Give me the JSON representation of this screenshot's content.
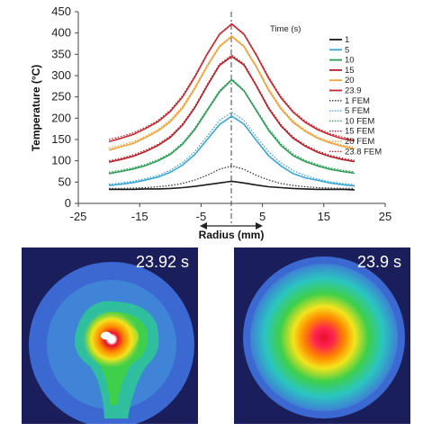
{
  "chart_data": {
    "type": "line",
    "xlabel": "Radius (mm)",
    "ylabel": "Temperature (°C)",
    "xlim": [
      -25,
      25
    ],
    "ylim": [
      0,
      450
    ],
    "xticks": [
      -25,
      -15,
      -5,
      5,
      15,
      25
    ],
    "yticks": [
      0,
      50,
      100,
      150,
      200,
      250,
      300,
      350,
      400,
      450
    ],
    "grid": false,
    "legend_title": "Time (s)",
    "legend_position": "top-right",
    "x": [
      -20,
      -18,
      -16,
      -14,
      -12,
      -10,
      -8,
      -6,
      -4,
      -2,
      0,
      2,
      4,
      6,
      8,
      10,
      12,
      14,
      16,
      18,
      20
    ],
    "series": [
      {
        "name": "1",
        "style": "solid",
        "color": "#1a1a1a",
        "values": [
          33,
          33,
          33,
          34,
          34,
          35,
          37,
          40,
          44,
          48,
          52,
          48,
          43,
          39,
          37,
          35,
          34,
          33,
          33,
          33,
          32
        ]
      },
      {
        "name": "5",
        "style": "solid",
        "color": "#3aa6d6",
        "values": [
          42,
          45,
          49,
          55,
          62,
          73,
          90,
          115,
          150,
          185,
          205,
          186,
          148,
          112,
          88,
          70,
          60,
          54,
          48,
          44,
          41
        ]
      },
      {
        "name": "10",
        "style": "solid",
        "color": "#2e9e57",
        "values": [
          70,
          75,
          81,
          89,
          100,
          115,
          139,
          174,
          218,
          262,
          290,
          264,
          218,
          172,
          136,
          112,
          98,
          88,
          80,
          75,
          71
        ]
      },
      {
        "name": "15",
        "style": "solid",
        "color": "#b8202a",
        "values": [
          97,
          103,
          111,
          122,
          136,
          155,
          184,
          225,
          276,
          324,
          345,
          325,
          276,
          223,
          182,
          153,
          134,
          120,
          110,
          103,
          98
        ]
      },
      {
        "name": "20",
        "style": "solid",
        "color": "#f2a23a",
        "values": [
          125,
          133,
          141,
          155,
          170,
          192,
          224,
          270,
          322,
          368,
          392,
          368,
          320,
          266,
          222,
          190,
          169,
          153,
          142,
          134,
          128
        ]
      },
      {
        "name": "23.9",
        "style": "solid",
        "color": "#c9272e",
        "values": [
          145,
          153,
          162,
          176,
          192,
          216,
          250,
          297,
          350,
          397,
          421,
          397,
          348,
          294,
          248,
          214,
          190,
          173,
          161,
          152,
          147
        ]
      },
      {
        "name": "1 FEM",
        "style": "dotted",
        "color": "#333333",
        "values": [
          35,
          35,
          36,
          37,
          39,
          42,
          47,
          55,
          66,
          80,
          88,
          80,
          66,
          55,
          47,
          42,
          39,
          37,
          36,
          35,
          35
        ]
      },
      {
        "name": "5 FEM",
        "style": "dotted",
        "color": "#3aa6d6",
        "values": [
          45,
          48,
          52,
          58,
          66,
          78,
          96,
          122,
          158,
          195,
          214,
          195,
          157,
          121,
          95,
          77,
          65,
          57,
          51,
          47,
          44
        ]
      },
      {
        "name": "10 FEM",
        "style": "dotted",
        "color": "#2e9e57",
        "values": [
          73,
          78,
          84,
          92,
          103,
          118,
          142,
          177,
          221,
          265,
          292,
          266,
          220,
          175,
          140,
          116,
          101,
          91,
          83,
          78,
          74
        ]
      },
      {
        "name": "15 FEM",
        "style": "dotted",
        "color": "#b8202a",
        "values": [
          100,
          106,
          114,
          125,
          139,
          158,
          187,
          228,
          279,
          327,
          348,
          328,
          278,
          226,
          185,
          156,
          137,
          123,
          113,
          106,
          101
        ]
      },
      {
        "name": "20 FEM",
        "style": "dotted",
        "color": "#f2a23a",
        "values": [
          130,
          137,
          145,
          158,
          174,
          196,
          228,
          274,
          325,
          370,
          394,
          370,
          323,
          270,
          226,
          194,
          172,
          156,
          145,
          137,
          131
        ]
      },
      {
        "name": "23.8 FEM",
        "style": "dotted",
        "color": "#c9272e",
        "values": [
          150,
          157,
          166,
          179,
          195,
          219,
          253,
          300,
          352,
          398,
          422,
          398,
          350,
          297,
          251,
          217,
          193,
          176,
          164,
          156,
          150
        ]
      }
    ],
    "centerline_x": 0,
    "arrow_annotation": "double-headed arrow below x-axis label"
  },
  "images": [
    {
      "label": "23.92 s",
      "pattern": "irregular-hotspot"
    },
    {
      "label": "23.9 s",
      "pattern": "radial-hotspot"
    }
  ]
}
